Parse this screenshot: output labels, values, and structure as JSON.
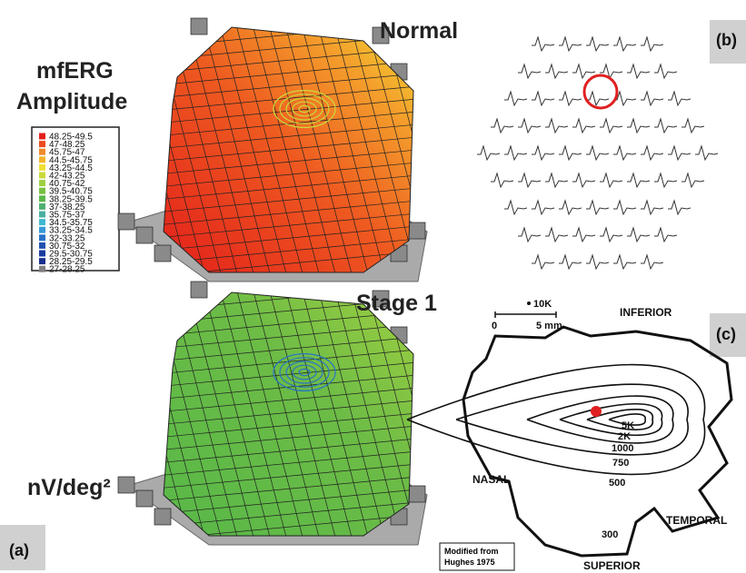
{
  "panel_a": {
    "title_lines": [
      "mfERG",
      "Amplitude"
    ],
    "unit": "nV/deg²",
    "label": "(a)",
    "legend": [
      {
        "label": "48.25-49.5",
        "color": "#e3201b"
      },
      {
        "label": "47-48.25",
        "color": "#ee4a1f"
      },
      {
        "label": "45.75-47",
        "color": "#f08a2c"
      },
      {
        "label": "44.5-45.75",
        "color": "#f4b52e"
      },
      {
        "label": "43.25-44.5",
        "color": "#f0df32"
      },
      {
        "label": "42-43.25",
        "color": "#c9da3a"
      },
      {
        "label": "40.75-42",
        "color": "#9fcf41"
      },
      {
        "label": "39.5-40.75",
        "color": "#79c043"
      },
      {
        "label": "38.25-39.5",
        "color": "#5bb84a"
      },
      {
        "label": "37-38.25",
        "color": "#4fb071"
      },
      {
        "label": "35.75-37",
        "color": "#49b0a0"
      },
      {
        "label": "34.5-35.75",
        "color": "#40b8d2"
      },
      {
        "label": "33.25-34.5",
        "color": "#3898d8"
      },
      {
        "label": "32-33.25",
        "color": "#2a72c8"
      },
      {
        "label": "30.75-32",
        "color": "#2152b0"
      },
      {
        "label": "29.5-30.75",
        "color": "#1a3ba0"
      },
      {
        "label": "28.25-29.5",
        "color": "#183090"
      },
      {
        "label": "27-28.25",
        "color": "#808080"
      }
    ]
  },
  "panel_b": {
    "title": "Normal",
    "label": "(b)"
  },
  "stage": {
    "title": "Stage 1"
  },
  "panel_c": {
    "label": "(c)",
    "scale": {
      "marker": "10K",
      "zero": "0",
      "length": "5 mm"
    },
    "directions": {
      "inferior": "INFERIOR",
      "nasal": "NASAL",
      "temporal": "TEMPORAL",
      "superior": "SUPERIOR"
    },
    "contours": [
      "5K",
      "2K",
      "1000",
      "750",
      "500",
      "300"
    ],
    "credit": [
      "Modified from",
      "Hughes 1975"
    ]
  }
}
